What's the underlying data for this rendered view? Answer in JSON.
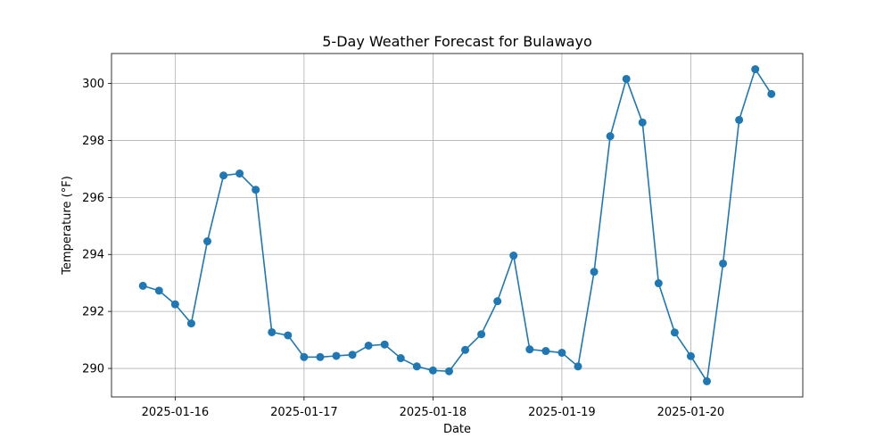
{
  "chart_data": {
    "type": "line",
    "title": "5-Day Weather Forecast for Bulawayo",
    "xlabel": "Date",
    "ylabel": "Temperature (°F)",
    "grid": true,
    "line_color": "#1f77b4",
    "x_start": "2025-01-15 18:00",
    "step_hours": 3,
    "x_ticks": [
      "2025-01-16",
      "2025-01-17",
      "2025-01-18",
      "2025-01-19",
      "2025-01-20"
    ],
    "y_ticks": [
      290,
      292,
      294,
      296,
      298,
      300
    ],
    "ylim": [
      289.0,
      301.05
    ],
    "series": [
      {
        "values": [
          292.9,
          292.73,
          292.25,
          291.58,
          294.46,
          296.77,
          296.84,
          296.27,
          291.27,
          291.16,
          290.4,
          290.4,
          290.44,
          290.48,
          290.8,
          290.84,
          290.36,
          290.07,
          289.93,
          289.9,
          290.65,
          291.2,
          292.36,
          293.96,
          290.67,
          290.61,
          290.55,
          290.07,
          293.39,
          298.15,
          300.16,
          298.63,
          292.99,
          291.26,
          290.43,
          289.55,
          293.68,
          298.72,
          300.5,
          299.63
        ]
      }
    ]
  }
}
